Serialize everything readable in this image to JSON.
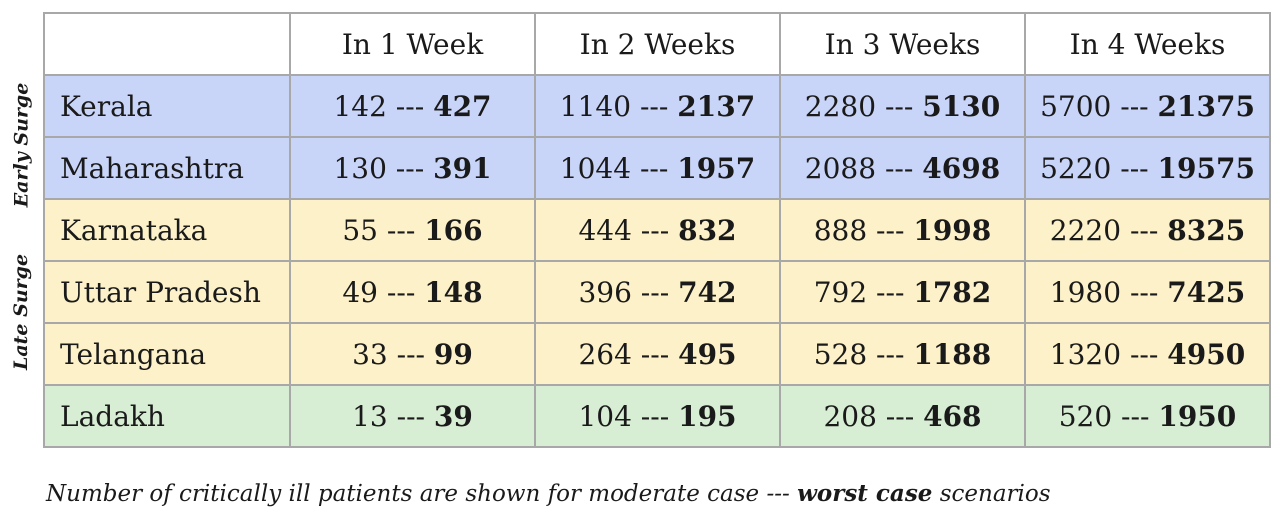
{
  "groups": {
    "early": "Early Surge",
    "late": "Late Surge"
  },
  "table": {
    "corner": "",
    "columns": [
      "In 1 Week",
      "In 2 Weeks",
      "In 3 Weeks",
      "In 4 Weeks"
    ],
    "separator": " --- ",
    "rows": [
      {
        "state": "Kerala",
        "group": "early",
        "cells": [
          {
            "moderate": "142",
            "worst": "427"
          },
          {
            "moderate": "1140",
            "worst": "2137"
          },
          {
            "moderate": "2280",
            "worst": "5130"
          },
          {
            "moderate": "5700",
            "worst": "21375"
          }
        ]
      },
      {
        "state": "Maharashtra",
        "group": "early",
        "cells": [
          {
            "moderate": "130",
            "worst": "391"
          },
          {
            "moderate": "1044",
            "worst": "1957"
          },
          {
            "moderate": "2088",
            "worst": "4698"
          },
          {
            "moderate": "5220",
            "worst": "19575"
          }
        ]
      },
      {
        "state": "Karnataka",
        "group": "late",
        "cells": [
          {
            "moderate": "55",
            "worst": "166"
          },
          {
            "moderate": "444",
            "worst": "832"
          },
          {
            "moderate": "888",
            "worst": "1998"
          },
          {
            "moderate": "2220",
            "worst": "8325"
          }
        ]
      },
      {
        "state": "Uttar Pradesh",
        "group": "late",
        "cells": [
          {
            "moderate": "49",
            "worst": "148"
          },
          {
            "moderate": "396",
            "worst": "742"
          },
          {
            "moderate": "792",
            "worst": "1782"
          },
          {
            "moderate": "1980",
            "worst": "7425"
          }
        ]
      },
      {
        "state": "Telangana",
        "group": "late",
        "cells": [
          {
            "moderate": "33",
            "worst": "99"
          },
          {
            "moderate": "264",
            "worst": "495"
          },
          {
            "moderate": "528",
            "worst": "1188"
          },
          {
            "moderate": "1320",
            "worst": "4950"
          }
        ]
      },
      {
        "state": "Ladakh",
        "group": "other",
        "cells": [
          {
            "moderate": "13",
            "worst": "39"
          },
          {
            "moderate": "104",
            "worst": "195"
          },
          {
            "moderate": "208",
            "worst": "468"
          },
          {
            "moderate": "520",
            "worst": "1950"
          }
        ]
      }
    ]
  },
  "caption": {
    "before": "Number of critically ill patients are shown for moderate case --- ",
    "bold": "worst case",
    "after": " scenarios"
  },
  "colors": {
    "early": "#c9d5f8",
    "late": "#fcf1c8",
    "other": "#d8eed4",
    "border": "#a8a8a8"
  }
}
